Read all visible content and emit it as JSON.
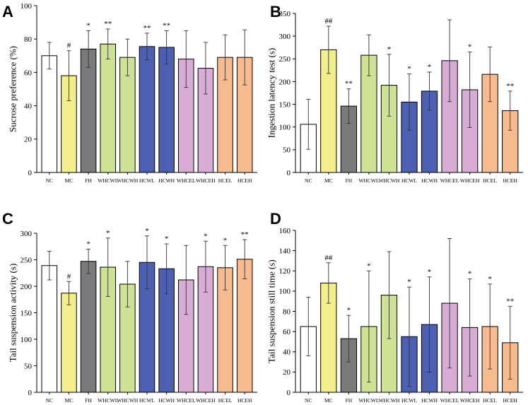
{
  "colors": {
    "NC": "#ffffff",
    "MC": "#f2ee8c",
    "FH": "#7a7a7a",
    "WHCWL": "#cde295",
    "WHCWH": "#cde295",
    "HCWL": "#4d5fb0",
    "HCWH": "#4d5fb0",
    "WHCEL": "#d9acd6",
    "WHCEH": "#d9acd6",
    "HCEL": "#f6bb8f",
    "HCEH": "#f6bb8f"
  },
  "chart_data": [
    {
      "type": "bar",
      "panel": "A",
      "ylabel": "Sucrose preference (%)",
      "ylim": [
        0,
        100
      ],
      "yticks": [
        0,
        20,
        40,
        60,
        80,
        100
      ],
      "categories": [
        "NC",
        "MC",
        "FH",
        "WHCWL",
        "WHCWH",
        "HCWL",
        "HCWH",
        "WHCEL",
        "WHCEH",
        "HCEL",
        "HCEH"
      ],
      "values": [
        70,
        58,
        74,
        77,
        69,
        75.5,
        75,
        68,
        62.5,
        69,
        69
      ],
      "error": [
        8,
        15,
        11,
        9,
        11,
        8,
        10,
        17,
        15.5,
        13.5,
        16.5
      ],
      "significance": [
        "",
        "#",
        "*",
        "**",
        "",
        "**",
        "**",
        "",
        "",
        "",
        ""
      ]
    },
    {
      "type": "bar",
      "panel": "B",
      "ylabel": "Ingestion latency test (s)",
      "ylim": [
        0,
        350
      ],
      "yticks": [
        0,
        50,
        100,
        150,
        200,
        250,
        300,
        350
      ],
      "categories": [
        "NC",
        "MC",
        "FH",
        "WHCWL",
        "WHCWH",
        "HCWL",
        "HCWH",
        "WHCEL",
        "WHCEH",
        "HCEL",
        "HCEH"
      ],
      "values": [
        106,
        270,
        146,
        258,
        192,
        155,
        179,
        246,
        182,
        216,
        136
      ],
      "error": [
        55,
        52,
        38,
        45,
        68,
        62,
        42,
        90,
        83,
        60,
        43
      ],
      "significance": [
        "",
        "##",
        "**",
        "",
        "*",
        "*",
        "*",
        "",
        "*",
        "",
        "**"
      ]
    },
    {
      "type": "bar",
      "panel": "C",
      "ylabel": "Tail suspension activity (s)",
      "ylim": [
        0,
        300
      ],
      "yticks": [
        0,
        50,
        100,
        150,
        200,
        250,
        300
      ],
      "categories": [
        "NC",
        "MC",
        "FH",
        "WHCWL",
        "WHCWH",
        "HCWL",
        "HCWH",
        "WHCEL",
        "WHCEH",
        "HCEL",
        "HCEH"
      ],
      "values": [
        239,
        187,
        247,
        236,
        204,
        245,
        233,
        212,
        237,
        235,
        251
      ],
      "error": [
        27,
        22,
        23,
        55,
        43,
        50,
        47,
        65,
        48,
        42,
        37
      ],
      "significance": [
        "",
        "#",
        "*",
        "*",
        "",
        "*",
        "*",
        "",
        "*",
        "*",
        "**"
      ]
    },
    {
      "type": "bar",
      "panel": "D",
      "ylabel": "Tail suspension still time (s)",
      "ylim": [
        0,
        160
      ],
      "yticks": [
        0,
        20,
        40,
        60,
        80,
        100,
        120,
        140,
        160
      ],
      "categories": [
        "NC",
        "MC",
        "FH",
        "WHCWL",
        "WHCWH",
        "HCWL",
        "HCWH",
        "WHCEL",
        "WHCEH",
        "HCEL",
        "HCEH"
      ],
      "values": [
        65,
        108,
        53,
        65,
        96,
        55,
        67,
        88,
        64,
        65,
        49
      ],
      "error": [
        29,
        20,
        23,
        55,
        43,
        49,
        47,
        64,
        48,
        42,
        36
      ],
      "significance": [
        "",
        "##",
        "*",
        "*",
        "",
        "*",
        "*",
        "",
        "*",
        "*",
        "**"
      ]
    }
  ]
}
